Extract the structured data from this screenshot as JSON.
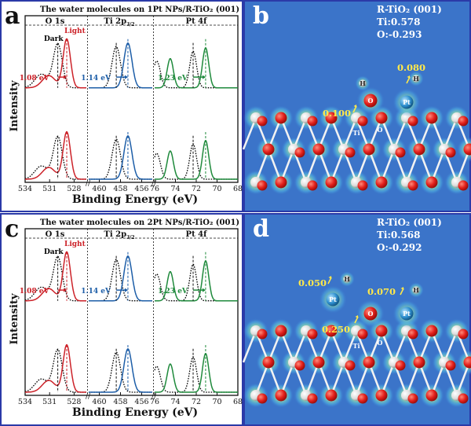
{
  "panels": [
    {
      "letter": "a",
      "title": "The water molecules on 1Pt NPs/R-TiO₂ (001)",
      "sections": [
        "O 1s",
        "Ti 2p",
        "Pt 4f"
      ],
      "ti_sub": "3/2",
      "dark_label": "Dark",
      "light_label": "Light",
      "shift_o": "1.08 eV",
      "shift_ti": "1.14 eV",
      "shift_pt": "1.23 eV"
    },
    {
      "letter": "b",
      "info": [
        "R-TiO₂ (001)",
        "Ti:0.578",
        "O:-0.293"
      ],
      "charges": [
        "0.080",
        "0.100"
      ],
      "atoms": [
        "H",
        "H",
        "O",
        "Pt",
        "Ti",
        "O"
      ]
    },
    {
      "letter": "c",
      "title": "The water molecules on 2Pt NPs/R-TiO₂ (001)",
      "sections": [
        "O 1s",
        "Ti 2p",
        "Pt 4f"
      ],
      "ti_sub": "3/2",
      "dark_label": "Dark",
      "light_label": "Light",
      "shift_o": "1.08 eV",
      "shift_ti": "1.14 eV",
      "shift_pt": "1.23 eV"
    },
    {
      "letter": "d",
      "info": [
        "R-TiO₂ (001)",
        "Ti:0.568",
        "O:-0.292"
      ],
      "charges": [
        "0.050",
        "0.070",
        "0.250"
      ],
      "atoms": [
        "H",
        "Pt",
        "H",
        "O",
        "Pt",
        "Ti",
        "O"
      ]
    }
  ],
  "axes": {
    "ylabel": "Intensity",
    "xlabel": "Binding Energy (eV)",
    "o_ticks": [
      "534",
      "531",
      "528"
    ],
    "ti_ticks": [
      "460",
      "458",
      "456"
    ],
    "pt_ticks": [
      "76",
      "74",
      "72",
      "70",
      "68"
    ]
  },
  "colors": {
    "dark": "#000000",
    "o_light": "#cc2229",
    "ti_light": "#1d5ea8",
    "pt_light": "#1f8a3c",
    "dft_bg": "#3b74c9",
    "frame": "#2b3aa8",
    "label_yellow": "#ffe94a"
  },
  "chart_data": [
    {
      "type": "line",
      "panel": "a",
      "xlabel": "Binding Energy (eV)",
      "ylabel": "Intensity",
      "regions": [
        {
          "name": "O 1s",
          "xlim": [
            534,
            526.5
          ],
          "ticks": [
            534,
            531,
            528
          ],
          "dark_peak": 530.0,
          "light_peak": 528.9,
          "shift": 1.08
        },
        {
          "name": "Ti 2p3/2",
          "xlim": [
            461,
            455
          ],
          "ticks": [
            460,
            458,
            456
          ],
          "dark_peak": 458.4,
          "light_peak": 457.3,
          "shift": 1.14
        },
        {
          "name": "Pt 4f",
          "xlim": [
            76,
            68
          ],
          "ticks": [
            76,
            74,
            72,
            70,
            68
          ],
          "dark_peaks": [
            75.8,
            72.3
          ],
          "light_peaks": [
            74.5,
            71.1
          ],
          "shift": 1.23
        }
      ],
      "series": [
        {
          "name": "Dark",
          "style": "dotted"
        },
        {
          "name": "Light",
          "style": "solid"
        }
      ]
    },
    {
      "type": "line",
      "panel": "c",
      "xlabel": "Binding Energy (eV)",
      "ylabel": "Intensity",
      "regions": [
        {
          "name": "O 1s",
          "xlim": [
            534,
            526.5
          ],
          "ticks": [
            534,
            531,
            528
          ],
          "dark_peak": 530.0,
          "light_peak": 528.9,
          "shift": 1.08
        },
        {
          "name": "Ti 2p3/2",
          "xlim": [
            461,
            455
          ],
          "ticks": [
            460,
            458,
            456
          ],
          "dark_peak": 458.4,
          "light_peak": 457.3,
          "shift": 1.14
        },
        {
          "name": "Pt 4f",
          "xlim": [
            76,
            68
          ],
          "ticks": [
            76,
            74,
            72,
            70,
            68
          ],
          "dark_peaks": [
            75.8,
            72.3
          ],
          "light_peaks": [
            74.5,
            71.1
          ],
          "shift": 1.23
        }
      ],
      "series": [
        {
          "name": "Dark",
          "style": "dotted"
        },
        {
          "name": "Light",
          "style": "solid"
        }
      ]
    }
  ]
}
